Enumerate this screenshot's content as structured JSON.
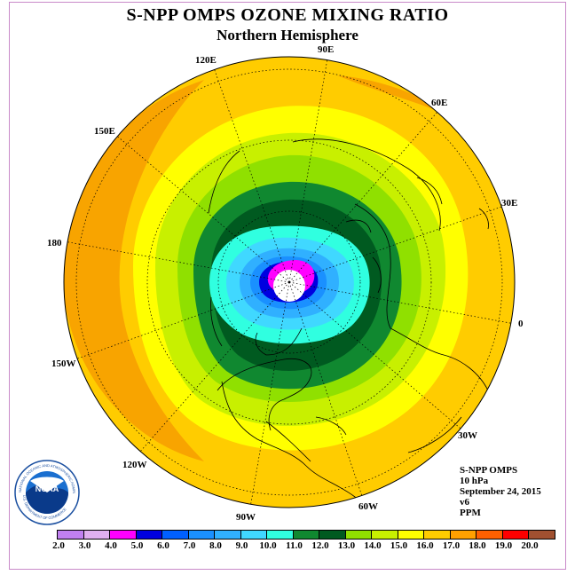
{
  "title": "S-NPP OMPS OZONE MIXING RATIO",
  "subtitle": "Northern Hemisphere",
  "longitude_labels": {
    "e90": "90E",
    "e60": "60E",
    "e30": "30E",
    "zero": "0",
    "w30": "30W",
    "w60": "60W",
    "w90": "90W",
    "w120": "120W",
    "w150": "150W",
    "d180": "180",
    "e150": "150E",
    "e120": "120E"
  },
  "info": {
    "instrument": "S-NPP OMPS",
    "level": "10 hPa",
    "date": "September 24, 2015",
    "version": "v6",
    "units": "PPM"
  },
  "logo": {
    "text": "NOAA",
    "ring_text": "NATIONAL OCEANIC AND ATMOSPHERIC ADMINISTRATION",
    "ring_text_bottom": "U.S. DEPARTMENT OF COMMERCE"
  },
  "colorbar": {
    "ticks": [
      "2.0",
      "3.0",
      "4.0",
      "5.0",
      "6.0",
      "7.0",
      "8.0",
      "9.0",
      "10.0",
      "11.0",
      "12.0",
      "13.0",
      "14.0",
      "15.0",
      "16.0",
      "17.0",
      "18.0",
      "19.0",
      "20.0"
    ],
    "colors": [
      "#c080f0",
      "#e0b0f0",
      "#ff00ff",
      "#0000e0",
      "#0060ff",
      "#1a90ff",
      "#30b0ff",
      "#40d8ff",
      "#30ffe0",
      "#108830",
      "#005a20",
      "#90e000",
      "#c8f000",
      "#ffff00",
      "#ffcc00",
      "#ffa000",
      "#ff6000",
      "#ff0000",
      "#a05030"
    ]
  },
  "map_colors": {
    "c16": "#ffcc00",
    "c17": "#f8a400",
    "c15": "#ffff00",
    "c14": "#c8f000",
    "c13": "#90e000",
    "c12": "#108830",
    "c11": "#005a20",
    "c10": "#30ffe0",
    "c9": "#40d8ff",
    "c8": "#30b0ff",
    "c7": "#1a90ff",
    "c6": "#0000e0",
    "c4": "#ff00ff",
    "pole": "#ffffff"
  }
}
